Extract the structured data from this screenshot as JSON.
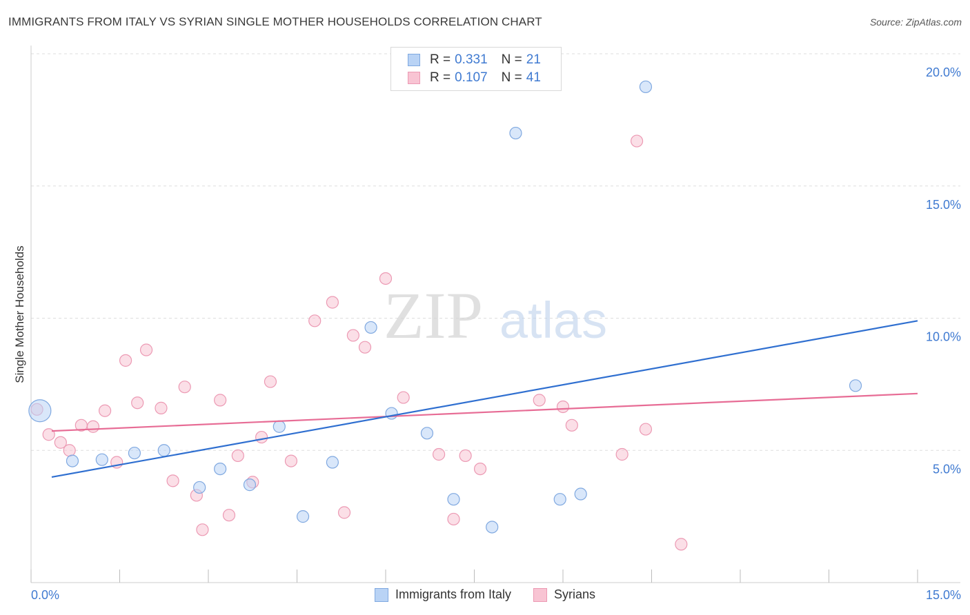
{
  "title": "IMMIGRANTS FROM ITALY VS SYRIAN SINGLE MOTHER HOUSEHOLDS CORRELATION CHART",
  "source": "Source: ZipAtlas.com",
  "watermark": {
    "zip": "ZIP",
    "atlas": "atlas"
  },
  "legend_top": [
    {
      "r_label": "R =",
      "r_value": "0.331",
      "n_label": "N =",
      "n_value": "21"
    },
    {
      "r_label": "R =",
      "r_value": "0.107",
      "n_label": "N =",
      "n_value": "41"
    }
  ],
  "legend_bottom": [
    {
      "label": "Immigrants from Italy"
    },
    {
      "label": "Syrians"
    }
  ],
  "colors": {
    "italy_fill": "#b9d3f5",
    "italy_stroke": "#7fa8e0",
    "italy_line": "#2f6fd0",
    "syrian_fill": "#f8c4d3",
    "syrian_stroke": "#ec99b3",
    "syrian_line": "#e76c95",
    "axis_label": "#3f7ad1",
    "grid": "#dddddd"
  },
  "chart_data": {
    "type": "scatter",
    "title": "IMMIGRANTS FROM ITALY VS SYRIAN SINGLE MOTHER HOUSEHOLDS CORRELATION CHART",
    "xlabel": "",
    "ylabel": "Single Mother Households",
    "xlim": [
      0,
      15
    ],
    "ylim": [
      0,
      20
    ],
    "x_tick_labels": [
      "0.0%",
      "15.0%"
    ],
    "y_ticks": [
      5,
      10,
      15,
      20
    ],
    "y_tick_labels": [
      "5.0%",
      "10.0%",
      "15.0%",
      "20.0%"
    ],
    "grid": true,
    "series": [
      {
        "name": "Immigrants from Italy",
        "r": 0.331,
        "n": 21,
        "trend": {
          "x": [
            0.0,
            15.0
          ],
          "y": [
            3.85,
            9.9
          ]
        },
        "points": [
          {
            "x": 0.15,
            "y": 6.5,
            "big": true
          },
          {
            "x": 0.7,
            "y": 4.6
          },
          {
            "x": 1.2,
            "y": 4.65
          },
          {
            "x": 1.75,
            "y": 4.9
          },
          {
            "x": 2.25,
            "y": 5.0
          },
          {
            "x": 2.85,
            "y": 3.6
          },
          {
            "x": 3.2,
            "y": 4.3
          },
          {
            "x": 3.7,
            "y": 3.7
          },
          {
            "x": 4.2,
            "y": 5.9
          },
          {
            "x": 4.6,
            "y": 2.5
          },
          {
            "x": 5.1,
            "y": 4.55
          },
          {
            "x": 5.75,
            "y": 9.65
          },
          {
            "x": 6.1,
            "y": 6.4
          },
          {
            "x": 6.7,
            "y": 5.65
          },
          {
            "x": 7.15,
            "y": 3.15
          },
          {
            "x": 7.8,
            "y": 2.1
          },
          {
            "x": 8.2,
            "y": 17.0
          },
          {
            "x": 8.95,
            "y": 3.15
          },
          {
            "x": 9.3,
            "y": 3.35
          },
          {
            "x": 10.4,
            "y": 18.75
          },
          {
            "x": 13.95,
            "y": 7.45
          }
        ]
      },
      {
        "name": "Syrians",
        "r": 0.107,
        "n": 41,
        "trend": {
          "x": [
            0.0,
            15.0
          ],
          "y": [
            5.7,
            7.15
          ]
        },
        "points": [
          {
            "x": 0.1,
            "y": 6.55
          },
          {
            "x": 0.3,
            "y": 5.6
          },
          {
            "x": 0.5,
            "y": 5.3
          },
          {
            "x": 0.65,
            "y": 5.0
          },
          {
            "x": 0.85,
            "y": 5.95
          },
          {
            "x": 1.05,
            "y": 5.9
          },
          {
            "x": 1.25,
            "y": 6.5
          },
          {
            "x": 1.45,
            "y": 4.55
          },
          {
            "x": 1.6,
            "y": 8.4
          },
          {
            "x": 1.8,
            "y": 6.8
          },
          {
            "x": 1.95,
            "y": 8.8
          },
          {
            "x": 2.2,
            "y": 6.6
          },
          {
            "x": 2.4,
            "y": 3.85
          },
          {
            "x": 2.6,
            "y": 7.4
          },
          {
            "x": 2.8,
            "y": 3.3
          },
          {
            "x": 2.9,
            "y": 2.0
          },
          {
            "x": 3.2,
            "y": 6.9
          },
          {
            "x": 3.35,
            "y": 2.55
          },
          {
            "x": 3.5,
            "y": 4.8
          },
          {
            "x": 3.75,
            "y": 3.8
          },
          {
            "x": 3.9,
            "y": 5.5
          },
          {
            "x": 4.05,
            "y": 7.6
          },
          {
            "x": 4.4,
            "y": 4.6
          },
          {
            "x": 4.8,
            "y": 9.9
          },
          {
            "x": 5.1,
            "y": 10.6
          },
          {
            "x": 5.3,
            "y": 2.65
          },
          {
            "x": 5.45,
            "y": 9.35
          },
          {
            "x": 5.65,
            "y": 8.9
          },
          {
            "x": 6.0,
            "y": 11.5
          },
          {
            "x": 6.3,
            "y": 7.0
          },
          {
            "x": 6.9,
            "y": 4.85
          },
          {
            "x": 7.15,
            "y": 2.4
          },
          {
            "x": 7.35,
            "y": 4.8
          },
          {
            "x": 7.6,
            "y": 4.3
          },
          {
            "x": 8.6,
            "y": 6.9
          },
          {
            "x": 9.0,
            "y": 6.65
          },
          {
            "x": 9.15,
            "y": 5.95
          },
          {
            "x": 10.0,
            "y": 4.85
          },
          {
            "x": 10.25,
            "y": 16.7
          },
          {
            "x": 10.4,
            "y": 5.8
          },
          {
            "x": 11.0,
            "y": 1.45
          }
        ]
      }
    ]
  }
}
